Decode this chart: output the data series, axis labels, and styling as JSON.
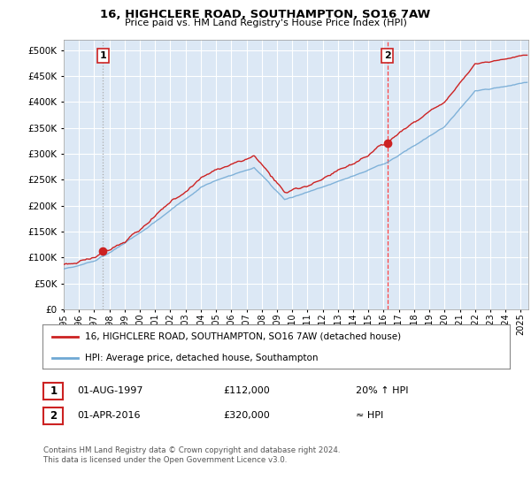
{
  "title": "16, HIGHCLERE ROAD, SOUTHAMPTON, SO16 7AW",
  "subtitle": "Price paid vs. HM Land Registry's House Price Index (HPI)",
  "background_color": "#ffffff",
  "plot_bg_color": "#dce8f5",
  "grid_color": "#ffffff",
  "ylim": [
    0,
    520000
  ],
  "yticks": [
    0,
    50000,
    100000,
    150000,
    200000,
    250000,
    300000,
    350000,
    400000,
    450000,
    500000
  ],
  "ytick_labels": [
    "£0",
    "£50K",
    "£100K",
    "£150K",
    "£200K",
    "£250K",
    "£300K",
    "£350K",
    "£400K",
    "£450K",
    "£500K"
  ],
  "xlim_start": 1995.0,
  "xlim_end": 2025.5,
  "xtick_years": [
    1995,
    1996,
    1997,
    1998,
    1999,
    2000,
    2001,
    2002,
    2003,
    2004,
    2005,
    2006,
    2007,
    2008,
    2009,
    2010,
    2011,
    2012,
    2013,
    2014,
    2015,
    2016,
    2017,
    2018,
    2019,
    2020,
    2021,
    2022,
    2023,
    2024,
    2025
  ],
  "sale1_x": 1997.583,
  "sale1_y": 112000,
  "sale1_label": "1",
  "sale1_vline_color": "#aaaaaa",
  "sale1_vline_style": ":",
  "sale2_x": 2016.25,
  "sale2_y": 320000,
  "sale2_label": "2",
  "sale2_vline_color": "#ff4444",
  "sale2_vline_style": "--",
  "hpi_line_color": "#6fa8d4",
  "price_line_color": "#cc2222",
  "marker_color": "#cc2222",
  "legend_label_price": "16, HIGHCLERE ROAD, SOUTHAMPTON, SO16 7AW (detached house)",
  "legend_label_hpi": "HPI: Average price, detached house, Southampton",
  "note1_label": "1",
  "note1_date": "01-AUG-1997",
  "note1_price": "£112,000",
  "note1_hpi": "20% ↑ HPI",
  "note2_label": "2",
  "note2_date": "01-APR-2016",
  "note2_price": "£320,000",
  "note2_hpi": "≈ HPI",
  "footer": "Contains HM Land Registry data © Crown copyright and database right 2024.\nThis data is licensed under the Open Government Licence v3.0."
}
